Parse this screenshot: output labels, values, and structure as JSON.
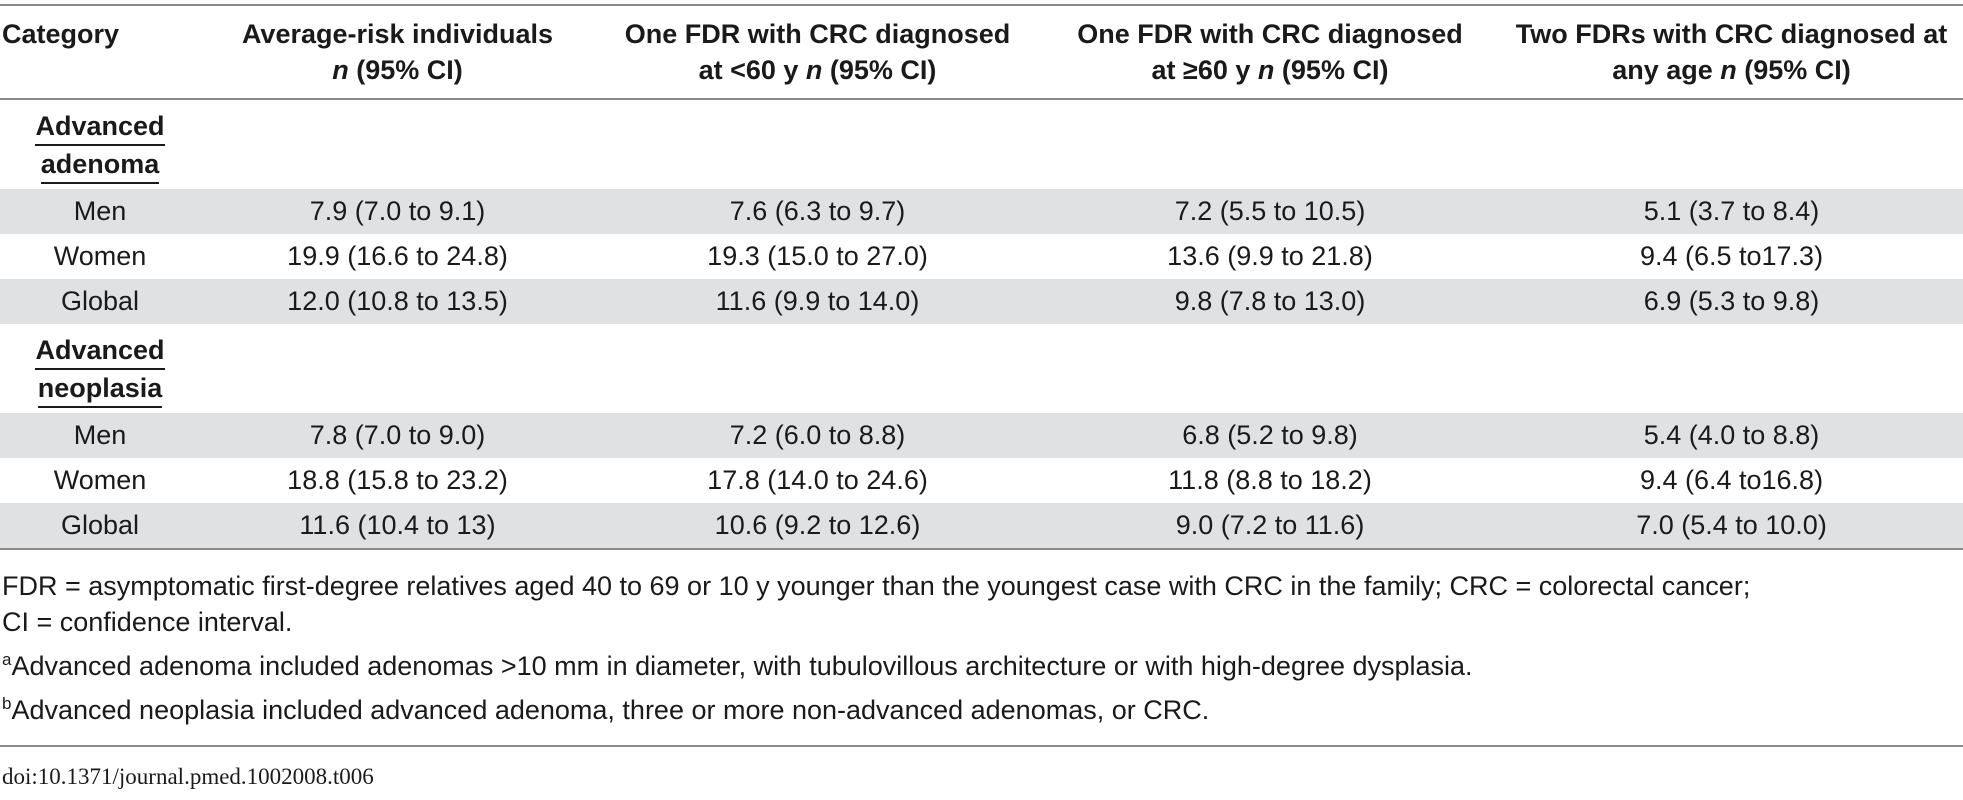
{
  "table": {
    "headers": [
      {
        "text": "Category",
        "italic": ""
      },
      {
        "line1": "Average-risk individuals",
        "italic": "n",
        "rest": " (95% CI)"
      },
      {
        "line1": "One FDR with CRC diagnosed",
        "line2_pre": "at <60 y ",
        "italic": "n",
        "rest": " (95% CI)"
      },
      {
        "line1": "One FDR with CRC diagnosed",
        "line2_pre": "at ≥60 y ",
        "italic": "n",
        "rest": " (95% CI)"
      },
      {
        "line1": "Two FDRs with CRC diagnosed at",
        "line2_pre": "any age ",
        "italic": "n",
        "rest": " (95% CI)"
      }
    ],
    "sections": [
      {
        "label_line1": "Advanced",
        "label_line2": "adenoma",
        "rows": [
          {
            "category": "Men",
            "values": [
              "7.9 (7.0 to 9.1)",
              "7.6 (6.3 to 9.7)",
              "7.2 (5.5 to 10.5)",
              "5.1 (3.7 to 8.4)"
            ]
          },
          {
            "category": "Women",
            "values": [
              "19.9 (16.6 to 24.8)",
              "19.3 (15.0 to 27.0)",
              "13.6 (9.9 to 21.8)",
              "9.4 (6.5 to17.3)"
            ]
          },
          {
            "category": "Global",
            "values": [
              "12.0 (10.8 to 13.5)",
              "11.6 (9.9 to 14.0)",
              "9.8 (7.8 to 13.0)",
              "6.9 (5.3 to 9.8)"
            ]
          }
        ]
      },
      {
        "label_line1": "Advanced",
        "label_line2": "neoplasia",
        "rows": [
          {
            "category": "Men",
            "values": [
              "7.8 (7.0 to 9.0)",
              "7.2 (6.0 to 8.8)",
              "6.8 (5.2 to 9.8)",
              "5.4 (4.0 to 8.8)"
            ]
          },
          {
            "category": "Women",
            "values": [
              "18.8 (15.8 to 23.2)",
              "17.8 (14.0 to 24.6)",
              "11.8 (8.8 to 18.2)",
              "9.4 (6.4 to16.8)"
            ]
          },
          {
            "category": "Global",
            "values": [
              "11.6 (10.4 to 13)",
              "10.6 (9.2 to 12.6)",
              "9.0 (7.2 to 11.6)",
              "7.0 (5.4 to 10.0)"
            ]
          }
        ]
      }
    ]
  },
  "notes": {
    "abbrev_line1": "FDR = asymptomatic first-degree relatives aged 40 to 69 or 10 y younger than the youngest case with CRC in the family; CRC = colorectal cancer;",
    "abbrev_line2": "CI = confidence interval.",
    "note_a_mark": "a",
    "note_a": "Advanced adenoma included adenomas >10 mm in diameter, with tubulovillous architecture or with high-degree dysplasia.",
    "note_b_mark": "b",
    "note_b": "Advanced neoplasia included advanced adenoma, three or more non-advanced adenomas, or CRC."
  },
  "doi": "doi:10.1371/journal.pmed.1002008.t006"
}
